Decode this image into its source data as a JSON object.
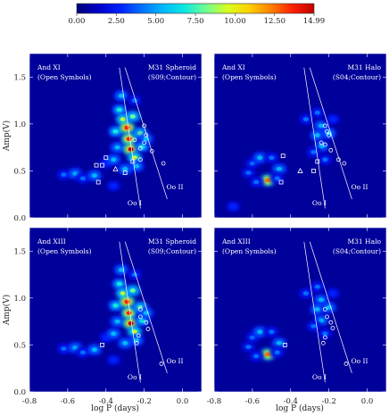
{
  "colorbar": {
    "ticks": [
      "0.00",
      "2.50",
      "5.00",
      "7.50",
      "10.00",
      "12.50",
      "14.99"
    ],
    "min": 0,
    "max": 14.99,
    "colors": [
      "#00007a",
      "#0000c8",
      "#0020ff",
      "#0070ff",
      "#00b8ff",
      "#10e8e0",
      "#70ff90",
      "#d8ff20",
      "#ffd000",
      "#ff8000",
      "#ff2000",
      "#c00000"
    ]
  },
  "axes": {
    "xlabel": "log P (days)",
    "ylabel": "Amp(V)",
    "xticks": [
      "-0.8",
      "-0.6",
      "-0.4",
      "-0.2",
      "0.0"
    ],
    "yticks": [
      "0.0",
      "0.5",
      "1.0",
      "1.5"
    ],
    "xlim": [
      -0.8,
      0.1
    ],
    "ylim": [
      0.0,
      1.75
    ]
  },
  "chart_data": [
    {
      "type": "heatmap",
      "label_left_line1": "And XI",
      "label_left_line2": "(Open Symbols)",
      "label_right_line1": "M31 Spheroid",
      "label_right_line2": "(S09;Contour)",
      "oo_i": "Oo I",
      "oo_ii": "Oo II",
      "blobs": [
        {
          "x": -0.62,
          "y": 0.46,
          "v": 4
        },
        {
          "x": -0.56,
          "y": 0.47,
          "v": 5
        },
        {
          "x": -0.52,
          "y": 0.42,
          "v": 4
        },
        {
          "x": -0.46,
          "y": 0.45,
          "v": 5
        },
        {
          "x": -0.4,
          "y": 0.58,
          "v": 3
        },
        {
          "x": -0.36,
          "y": 0.62,
          "v": 5
        },
        {
          "x": -0.34,
          "y": 0.75,
          "v": 6
        },
        {
          "x": -0.35,
          "y": 0.92,
          "v": 7
        },
        {
          "x": -0.33,
          "y": 1.15,
          "v": 7
        },
        {
          "x": -0.32,
          "y": 1.3,
          "v": 6
        },
        {
          "x": -0.31,
          "y": 1.05,
          "v": 9
        },
        {
          "x": -0.29,
          "y": 0.96,
          "v": 14
        },
        {
          "x": -0.28,
          "y": 0.84,
          "v": 13
        },
        {
          "x": -0.27,
          "y": 0.73,
          "v": 15
        },
        {
          "x": -0.25,
          "y": 0.64,
          "v": 9
        },
        {
          "x": -0.26,
          "y": 1.08,
          "v": 8
        },
        {
          "x": -0.22,
          "y": 0.9,
          "v": 8
        },
        {
          "x": -0.21,
          "y": 0.76,
          "v": 7
        },
        {
          "x": -0.24,
          "y": 0.55,
          "v": 5
        },
        {
          "x": -0.3,
          "y": 0.52,
          "v": 5
        },
        {
          "x": -0.19,
          "y": 0.84,
          "v": 5
        },
        {
          "x": -0.36,
          "y": 0.34,
          "v": 3
        },
        {
          "x": -0.25,
          "y": 1.25,
          "v": 4
        }
      ],
      "circles": [
        [
          -0.2,
          0.98
        ],
        [
          -0.19,
          0.88
        ],
        [
          -0.2,
          0.8
        ],
        [
          -0.16,
          0.71
        ],
        [
          -0.22,
          0.62
        ],
        [
          -0.1,
          0.58
        ],
        [
          -0.25,
          0.83
        ],
        [
          -0.22,
          0.74
        ]
      ],
      "squares": [
        [
          -0.45,
          0.56
        ],
        [
          -0.42,
          0.56
        ],
        [
          -0.4,
          0.64
        ],
        [
          -0.44,
          0.38
        ],
        [
          -0.3,
          0.48
        ],
        [
          -0.26,
          0.6
        ]
      ],
      "triangles": [
        [
          -0.35,
          0.52
        ]
      ]
    },
    {
      "type": "heatmap",
      "label_left_line1": "And XI",
      "label_left_line2": "(Open Symbols)",
      "label_right_line1": "M31 Halo",
      "label_right_line2": "(S04;Contour)",
      "oo_i": "Oo I",
      "oo_ii": "Oo II",
      "blobs": [
        {
          "x": -0.62,
          "y": 0.48,
          "v": 4
        },
        {
          "x": -0.6,
          "y": 0.58,
          "v": 4
        },
        {
          "x": -0.56,
          "y": 0.64,
          "v": 5
        },
        {
          "x": -0.5,
          "y": 0.64,
          "v": 4
        },
        {
          "x": -0.46,
          "y": 0.52,
          "v": 5
        },
        {
          "x": -0.52,
          "y": 0.4,
          "v": 12
        },
        {
          "x": -0.58,
          "y": 0.38,
          "v": 4
        },
        {
          "x": -0.47,
          "y": 0.42,
          "v": 4
        },
        {
          "x": -0.32,
          "y": 1.05,
          "v": 4
        },
        {
          "x": -0.26,
          "y": 1.12,
          "v": 4
        },
        {
          "x": -0.24,
          "y": 0.98,
          "v": 5
        },
        {
          "x": -0.26,
          "y": 0.88,
          "v": 6
        },
        {
          "x": -0.24,
          "y": 0.76,
          "v": 5
        },
        {
          "x": -0.2,
          "y": 0.9,
          "v": 5
        },
        {
          "x": -0.22,
          "y": 0.62,
          "v": 4
        },
        {
          "x": -0.18,
          "y": 1.05,
          "v": 3
        },
        {
          "x": -0.28,
          "y": 0.7,
          "v": 4
        },
        {
          "x": -0.7,
          "y": 0.12,
          "v": 3
        }
      ],
      "circles": [
        [
          -0.22,
          0.98
        ],
        [
          -0.2,
          0.88
        ],
        [
          -0.24,
          0.8
        ],
        [
          -0.22,
          0.78
        ],
        [
          -0.19,
          0.72
        ],
        [
          -0.15,
          0.62
        ],
        [
          -0.12,
          0.58
        ],
        [
          -0.21,
          0.92
        ]
      ],
      "squares": [
        [
          -0.44,
          0.66
        ],
        [
          -0.45,
          0.38
        ],
        [
          -0.28,
          0.5
        ],
        [
          -0.26,
          0.6
        ]
      ],
      "triangles": [
        [
          -0.35,
          0.5
        ]
      ]
    },
    {
      "type": "heatmap",
      "label_left_line1": "And XIII",
      "label_left_line2": "(Open Symbols)",
      "label_right_line1": "M31 Spheroid",
      "label_right_line2": "(S09;Contour)",
      "oo_i": "Oo I",
      "oo_ii": "Oo II",
      "blobs": [
        {
          "x": -0.62,
          "y": 0.46,
          "v": 4
        },
        {
          "x": -0.56,
          "y": 0.47,
          "v": 5
        },
        {
          "x": -0.52,
          "y": 0.42,
          "v": 4
        },
        {
          "x": -0.46,
          "y": 0.45,
          "v": 5
        },
        {
          "x": -0.4,
          "y": 0.58,
          "v": 3
        },
        {
          "x": -0.36,
          "y": 0.62,
          "v": 5
        },
        {
          "x": -0.34,
          "y": 0.75,
          "v": 6
        },
        {
          "x": -0.35,
          "y": 0.92,
          "v": 7
        },
        {
          "x": -0.33,
          "y": 1.15,
          "v": 7
        },
        {
          "x": -0.32,
          "y": 1.3,
          "v": 6
        },
        {
          "x": -0.31,
          "y": 1.05,
          "v": 9
        },
        {
          "x": -0.29,
          "y": 0.96,
          "v": 14
        },
        {
          "x": -0.28,
          "y": 0.84,
          "v": 13
        },
        {
          "x": -0.27,
          "y": 0.73,
          "v": 15
        },
        {
          "x": -0.25,
          "y": 0.64,
          "v": 9
        },
        {
          "x": -0.26,
          "y": 1.08,
          "v": 8
        },
        {
          "x": -0.22,
          "y": 0.9,
          "v": 8
        },
        {
          "x": -0.21,
          "y": 0.76,
          "v": 7
        },
        {
          "x": -0.24,
          "y": 0.55,
          "v": 5
        },
        {
          "x": -0.3,
          "y": 0.52,
          "v": 5
        },
        {
          "x": -0.19,
          "y": 0.84,
          "v": 5
        },
        {
          "x": -0.36,
          "y": 0.34,
          "v": 3
        },
        {
          "x": -0.25,
          "y": 1.25,
          "v": 4
        }
      ],
      "circles": [
        [
          -0.22,
          0.88
        ],
        [
          -0.22,
          0.8
        ],
        [
          -0.19,
          0.74
        ],
        [
          -0.18,
          0.67
        ],
        [
          -0.23,
          0.6
        ],
        [
          -0.24,
          0.52
        ],
        [
          -0.11,
          0.3
        ]
      ],
      "squares": [
        [
          -0.42,
          0.5
        ]
      ],
      "triangles": []
    },
    {
      "type": "heatmap",
      "label_left_line1": "And XIII",
      "label_left_line2": "(Open Symbols)",
      "label_right_line1": "M31 Halo",
      "label_right_line2": "(S04;Contour)",
      "oo_i": "Oo I",
      "oo_ii": "Oo II",
      "blobs": [
        {
          "x": -0.62,
          "y": 0.48,
          "v": 4
        },
        {
          "x": -0.6,
          "y": 0.58,
          "v": 4
        },
        {
          "x": -0.56,
          "y": 0.64,
          "v": 5
        },
        {
          "x": -0.5,
          "y": 0.64,
          "v": 4
        },
        {
          "x": -0.46,
          "y": 0.52,
          "v": 5
        },
        {
          "x": -0.52,
          "y": 0.4,
          "v": 12
        },
        {
          "x": -0.58,
          "y": 0.38,
          "v": 4
        },
        {
          "x": -0.47,
          "y": 0.42,
          "v": 4
        },
        {
          "x": -0.32,
          "y": 1.05,
          "v": 4
        },
        {
          "x": -0.26,
          "y": 1.12,
          "v": 4
        },
        {
          "x": -0.24,
          "y": 0.98,
          "v": 5
        },
        {
          "x": -0.26,
          "y": 0.88,
          "v": 6
        },
        {
          "x": -0.24,
          "y": 0.76,
          "v": 5
        },
        {
          "x": -0.2,
          "y": 0.9,
          "v": 5
        },
        {
          "x": -0.22,
          "y": 0.62,
          "v": 4
        },
        {
          "x": -0.18,
          "y": 1.05,
          "v": 3
        },
        {
          "x": -0.28,
          "y": 0.7,
          "v": 4
        }
      ],
      "circles": [
        [
          -0.22,
          0.88
        ],
        [
          -0.21,
          0.8
        ],
        [
          -0.19,
          0.74
        ],
        [
          -0.18,
          0.68
        ],
        [
          -0.22,
          0.58
        ],
        [
          -0.23,
          0.52
        ],
        [
          -0.11,
          0.3
        ]
      ],
      "squares": [
        [
          -0.43,
          0.5
        ]
      ],
      "triangles": []
    }
  ]
}
